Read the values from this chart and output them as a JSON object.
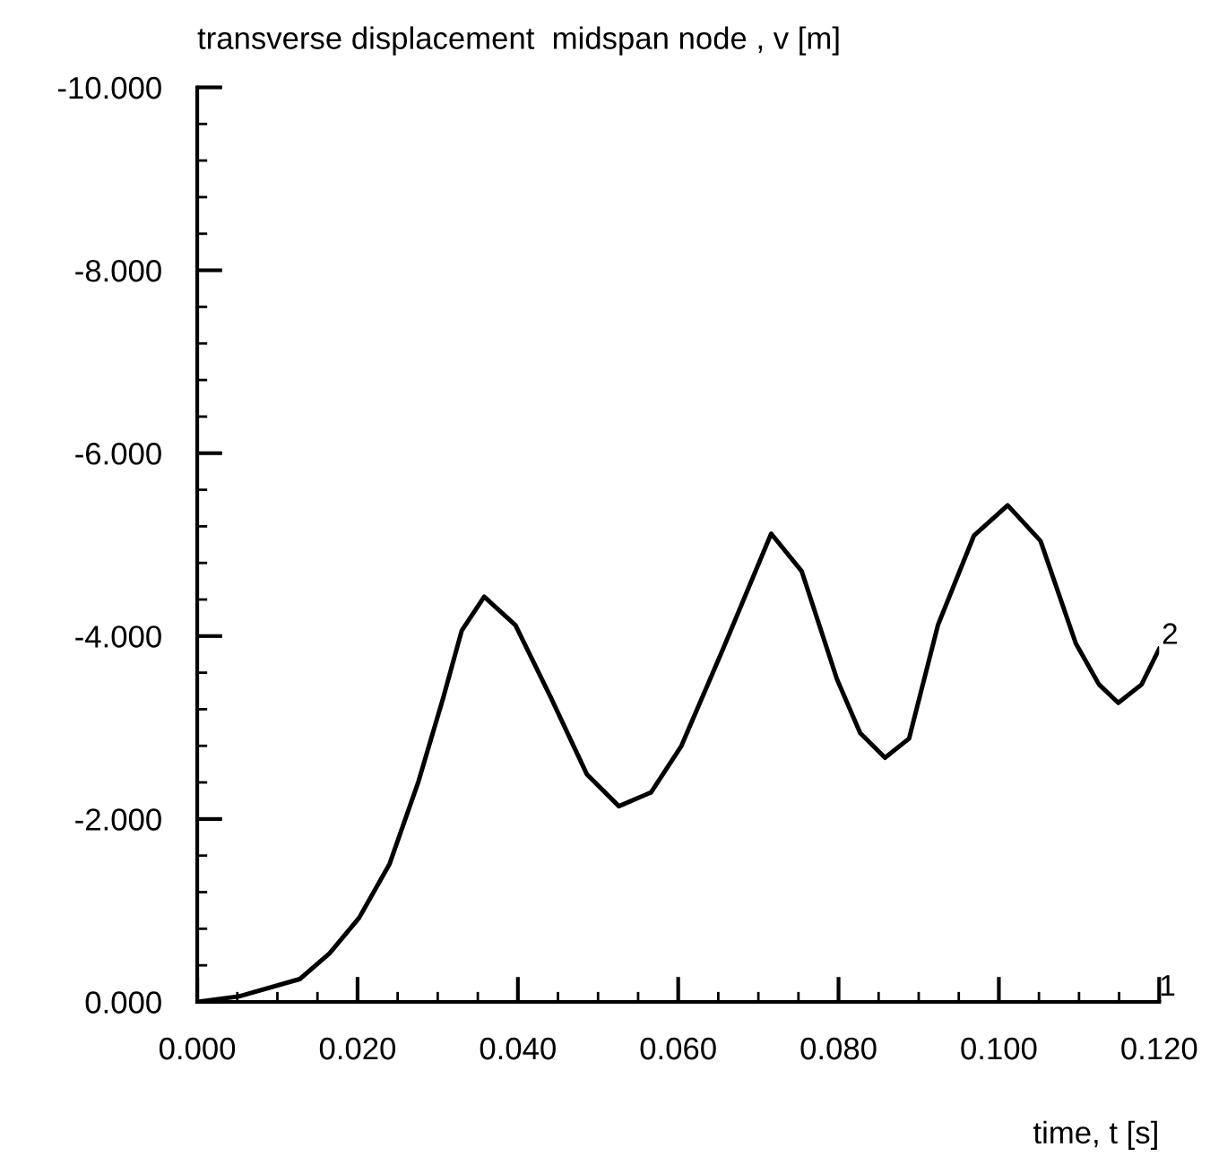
{
  "chart_data": {
    "type": "line",
    "title": "transverse displacement  midspan node , v [m]",
    "xlabel": "time, t [s]",
    "series": [
      {
        "name": "2",
        "color": "#000000",
        "x": [
          0.0,
          0.0052,
          0.0128,
          0.0165,
          0.0202,
          0.024,
          0.0276,
          0.0307,
          0.033,
          0.0358,
          0.0397,
          0.0441,
          0.0486,
          0.0526,
          0.0566,
          0.0604,
          0.0656,
          0.0716,
          0.0754,
          0.0798,
          0.0827,
          0.0858,
          0.0888,
          0.0924,
          0.0969,
          0.1011,
          0.1052,
          0.1096,
          0.1125,
          0.1149,
          0.1178,
          0.12
        ],
        "values": [
          0.0,
          -0.06,
          -0.25,
          -0.53,
          -0.92,
          -1.51,
          -2.41,
          -3.33,
          -4.06,
          -4.43,
          -4.12,
          -3.33,
          -2.49,
          -2.14,
          -2.29,
          -2.8,
          -3.86,
          -5.12,
          -4.71,
          -3.53,
          -2.94,
          -2.67,
          -2.88,
          -4.12,
          -5.1,
          -5.43,
          -5.04,
          -3.92,
          -3.47,
          -3.27,
          -3.47,
          -3.86
        ]
      }
    ],
    "annotations": [
      "1"
    ],
    "xlim": [
      0,
      0.12
    ],
    "ylim": [
      0,
      -10
    ],
    "xticks": [
      {
        "value": 0,
        "label": "0.000"
      },
      {
        "value": 0.02,
        "label": "0.020"
      },
      {
        "value": 0.04,
        "label": "0.040"
      },
      {
        "value": 0.06,
        "label": "0.060"
      },
      {
        "value": 0.08,
        "label": "0.080"
      },
      {
        "value": 0.1,
        "label": "0.100"
      },
      {
        "value": 0.12,
        "label": "0.120"
      }
    ],
    "yticks": [
      {
        "value": 0,
        "label": "0.000"
      },
      {
        "value": -2,
        "label": "-2.000"
      },
      {
        "value": -4,
        "label": "-4.000"
      },
      {
        "value": -6,
        "label": "-6.000"
      },
      {
        "value": -8,
        "label": "-8.000"
      },
      {
        "value": -10,
        "label": "-10.000"
      }
    ],
    "grid": false,
    "legend": false,
    "marker": "none",
    "line_style": "solid"
  }
}
